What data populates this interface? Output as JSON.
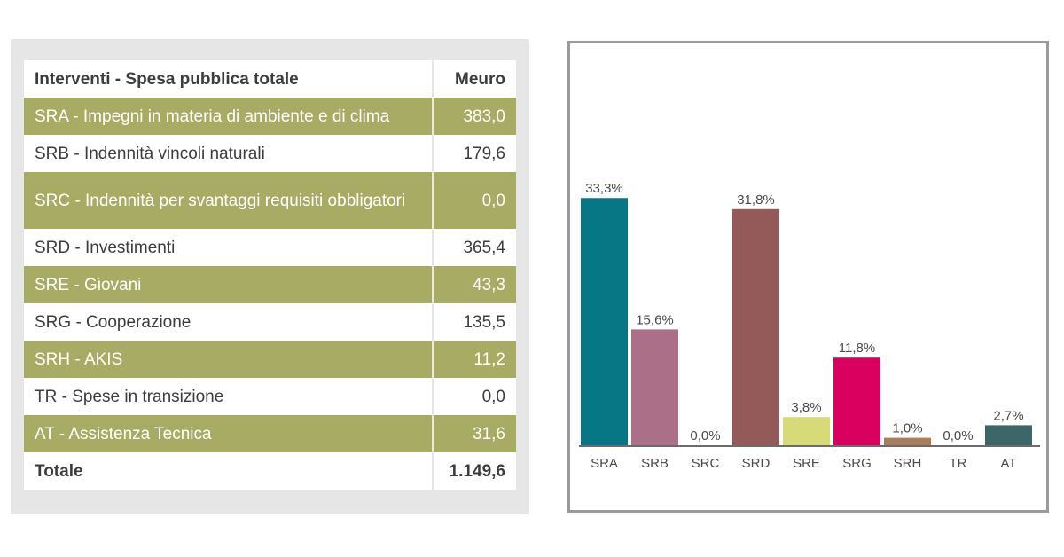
{
  "table": {
    "header_label": "Interventi - Spesa pubblica totale",
    "header_value": "Meuro",
    "rows": [
      {
        "label": "SRA - Impegni in materia di ambiente e di clima",
        "value": "383,0"
      },
      {
        "label": "SRB - Indennità vincoli naturali",
        "value": "179,6"
      },
      {
        "label": "SRC - Indennità per svantaggi requisiti obbligatori",
        "value": "0,0"
      },
      {
        "label": "SRD - Investimenti",
        "value": "365,4"
      },
      {
        "label": "SRE - Giovani",
        "value": "43,3"
      },
      {
        "label": "SRG - Cooperazione",
        "value": "135,5"
      },
      {
        "label": "SRH - AKIS",
        "value": "11,2"
      },
      {
        "label": "TR - Spese in transizione",
        "value": "0,0"
      },
      {
        "label": "AT - Assistenza Tecnica",
        "value": "31,6"
      }
    ],
    "total_label": "Totale",
    "total_value": "1.149,6"
  },
  "chart_data": {
    "type": "bar",
    "categories": [
      "SRA",
      "SRB",
      "SRC",
      "SRD",
      "SRE",
      "SRG",
      "SRH",
      "TR",
      "AT"
    ],
    "values": [
      33.3,
      15.6,
      0.0,
      31.8,
      3.8,
      11.8,
      1.0,
      0.0,
      2.7
    ],
    "data_labels": [
      "33,3%",
      "15,6%",
      "0,0%",
      "31,8%",
      "3,8%",
      "11,8%",
      "1,0%",
      "0,0%",
      "2,7%"
    ],
    "colors": [
      "#077685",
      "#ab6f88",
      "#9c9c9c",
      "#935a59",
      "#d6db77",
      "#d9005f",
      "#a77d5b",
      "#9c9c9c",
      "#3d6668"
    ],
    "ylim": [
      0,
      35
    ],
    "grid": false,
    "title": "",
    "xlabel": "",
    "ylabel": ""
  }
}
